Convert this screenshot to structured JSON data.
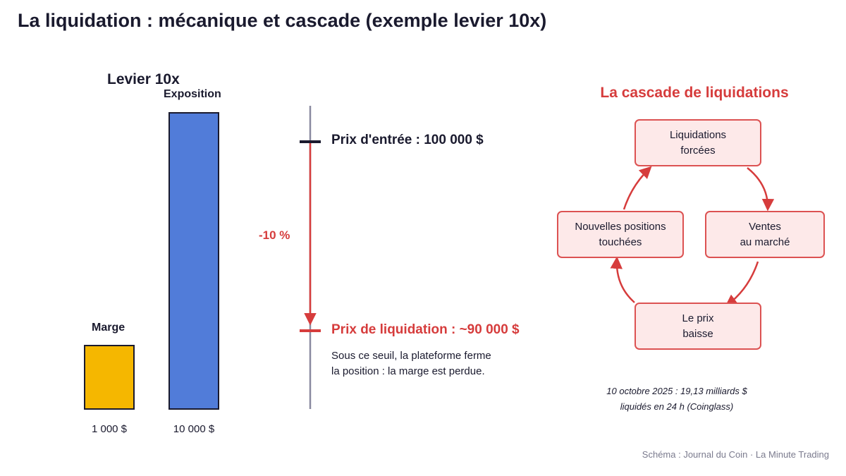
{
  "title": "La liquidation : mécanique et cascade (exemple levier 10x)",
  "leverage": {
    "title": "Levier 10x",
    "margin": {
      "label": "Marge",
      "value": "1 000 $",
      "amount": 1000
    },
    "exposure": {
      "label": "Exposition",
      "value": "10 000 $",
      "amount": 10000
    }
  },
  "price_axis": {
    "entry_label": "Prix d'entrée : 100 000 $",
    "liquidation_label": "Prix de liquidation : ~90 000 $",
    "drop_label": "-10 %",
    "note_line1": "Sous ce seuil, la plateforme ferme",
    "note_line2": "la position : la marge est perdue."
  },
  "cascade": {
    "title": "La cascade de liquidations",
    "nodes": [
      {
        "line1": "Liquidations",
        "line2": "forcées"
      },
      {
        "line1": "Ventes",
        "line2": "au marché"
      },
      {
        "line1": "Le prix",
        "line2": "baisse"
      },
      {
        "line1": "Nouvelles positions",
        "line2": "touchées"
      }
    ],
    "footnote_line1": "10 octobre 2025 : 19,13 milliards $",
    "footnote_line2": "liquidés en 24 h (Coinglass)"
  },
  "source": "Schéma : Journal du Coin · La Minute Trading",
  "colors": {
    "margin_bar": "#f5b700",
    "exposure_bar": "#517cd9",
    "accent_red": "#d63c3c",
    "dark": "#1a1a2e",
    "axis_grey": "#8a8aa0",
    "node_fill": "#fde9e9"
  }
}
